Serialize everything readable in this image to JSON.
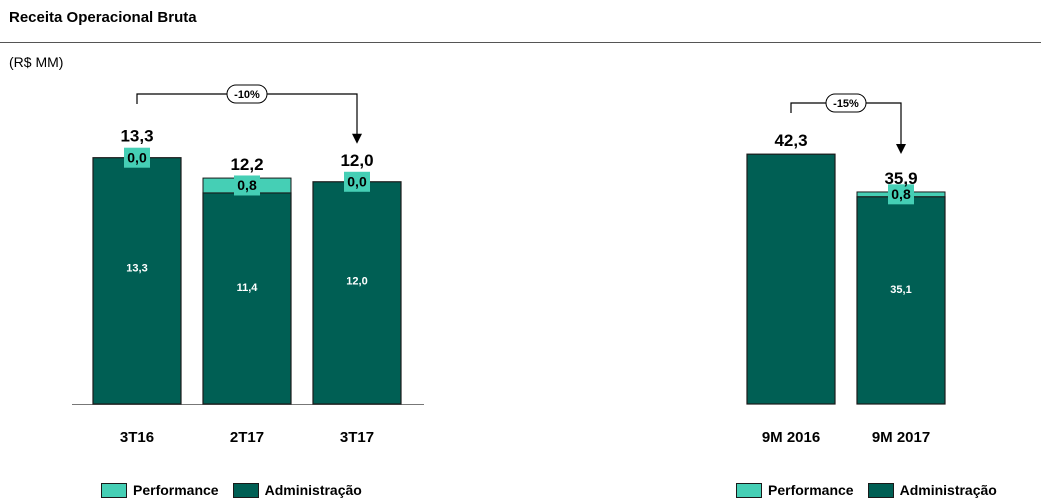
{
  "header": {
    "title": "Receita Operacional Bruta",
    "unit": "(R$ MM)"
  },
  "colors": {
    "performance": "#45CFB5",
    "administracao": "#005F54",
    "outline": "#1a1a1a"
  },
  "legend": {
    "performance_label": "Performance",
    "administracao_label": "Administração"
  },
  "chart_data": [
    {
      "type": "bar",
      "stacked": true,
      "categories": [
        "3T16",
        "2T17",
        "3T17"
      ],
      "series": [
        {
          "name": "Administração",
          "values": [
            13.3,
            11.4,
            12.0
          ],
          "labels": [
            "13,3",
            "11,4",
            "12,0"
          ]
        },
        {
          "name": "Performance",
          "values": [
            0.0,
            0.8,
            0.0
          ],
          "labels": [
            "0,0",
            "0,8",
            "0,0"
          ]
        }
      ],
      "totals": [
        13.3,
        12.2,
        12.0
      ],
      "total_labels": [
        "13,3",
        "12,2",
        "12,0"
      ],
      "annotation": {
        "text": "-10%",
        "from": "3T16",
        "to": "3T17"
      },
      "ylim": [
        0,
        15.66
      ]
    },
    {
      "type": "bar",
      "stacked": true,
      "categories": [
        "9M 2016",
        "9M 2017"
      ],
      "series": [
        {
          "name": "Administração",
          "values": [
            42.3,
            35.1
          ],
          "labels": [
            "",
            "35,1"
          ]
        },
        {
          "name": "Performance",
          "values": [
            0.0,
            0.8
          ],
          "labels": [
            "",
            "0,8"
          ]
        }
      ],
      "totals": [
        42.3,
        35.9
      ],
      "total_labels": [
        "42,3",
        "35,9"
      ],
      "annotation": {
        "text": "-15%",
        "from": "9M 2016",
        "to": "9M 2017"
      },
      "ylim": [
        0,
        49.1
      ]
    }
  ]
}
